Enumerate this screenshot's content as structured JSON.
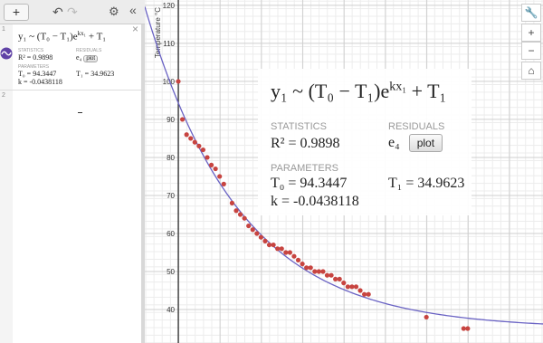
{
  "toolbar": {
    "add": "+",
    "collapse": "«"
  },
  "row_numbers": [
    "1",
    "2"
  ],
  "regression": {
    "formula": {
      "lhs": "y₁ ~ (T₀ − T₁)e",
      "exponent": "kx₁",
      "rhs": "+ T₁"
    },
    "statistics_label": "STATISTICS",
    "residuals_label": "RESIDUALS",
    "r2_label": "R² =",
    "r2": 0.9898,
    "residual_var": "e₄",
    "plot_button": "plot",
    "parameters_label": "PARAMETERS",
    "params": [
      {
        "label": "T₀ =",
        "value": 94.3447
      },
      {
        "label": "T₁ =",
        "value": 34.9623
      },
      {
        "label": "k =",
        "value": -0.0438118
      }
    ],
    "fit_color": "#6a63c4"
  },
  "chart_data": {
    "type": "scatter",
    "y_label": "Temperature °C",
    "x": [
      0,
      1,
      2,
      3,
      4,
      5,
      6,
      7,
      8,
      9,
      10,
      11,
      13,
      14,
      15,
      16,
      17,
      18,
      19,
      20,
      21,
      22,
      23,
      24,
      25,
      26,
      27,
      28,
      29,
      30,
      31,
      32,
      33,
      34,
      35,
      36,
      37,
      38,
      39,
      40,
      41,
      42,
      43,
      44,
      45,
      46,
      60,
      69,
      70
    ],
    "values": [
      100,
      90,
      86,
      85,
      84,
      83,
      82,
      80,
      78,
      77,
      75,
      73,
      68,
      66,
      65,
      64,
      62,
      61,
      60,
      59,
      58,
      57,
      57,
      56,
      56,
      55,
      55,
      54,
      53,
      52,
      51,
      51,
      50,
      50,
      50,
      49,
      49,
      48,
      48,
      47,
      46,
      46,
      46,
      45,
      44,
      44,
      38,
      35,
      35
    ],
    "color": "#c74440",
    "xlim": [
      -8.1,
      88.2
    ],
    "ylim": [
      31.2,
      121.4
    ],
    "yticks": [
      40,
      50,
      60,
      70,
      80,
      90,
      100,
      110,
      120
    ],
    "grid": true
  }
}
